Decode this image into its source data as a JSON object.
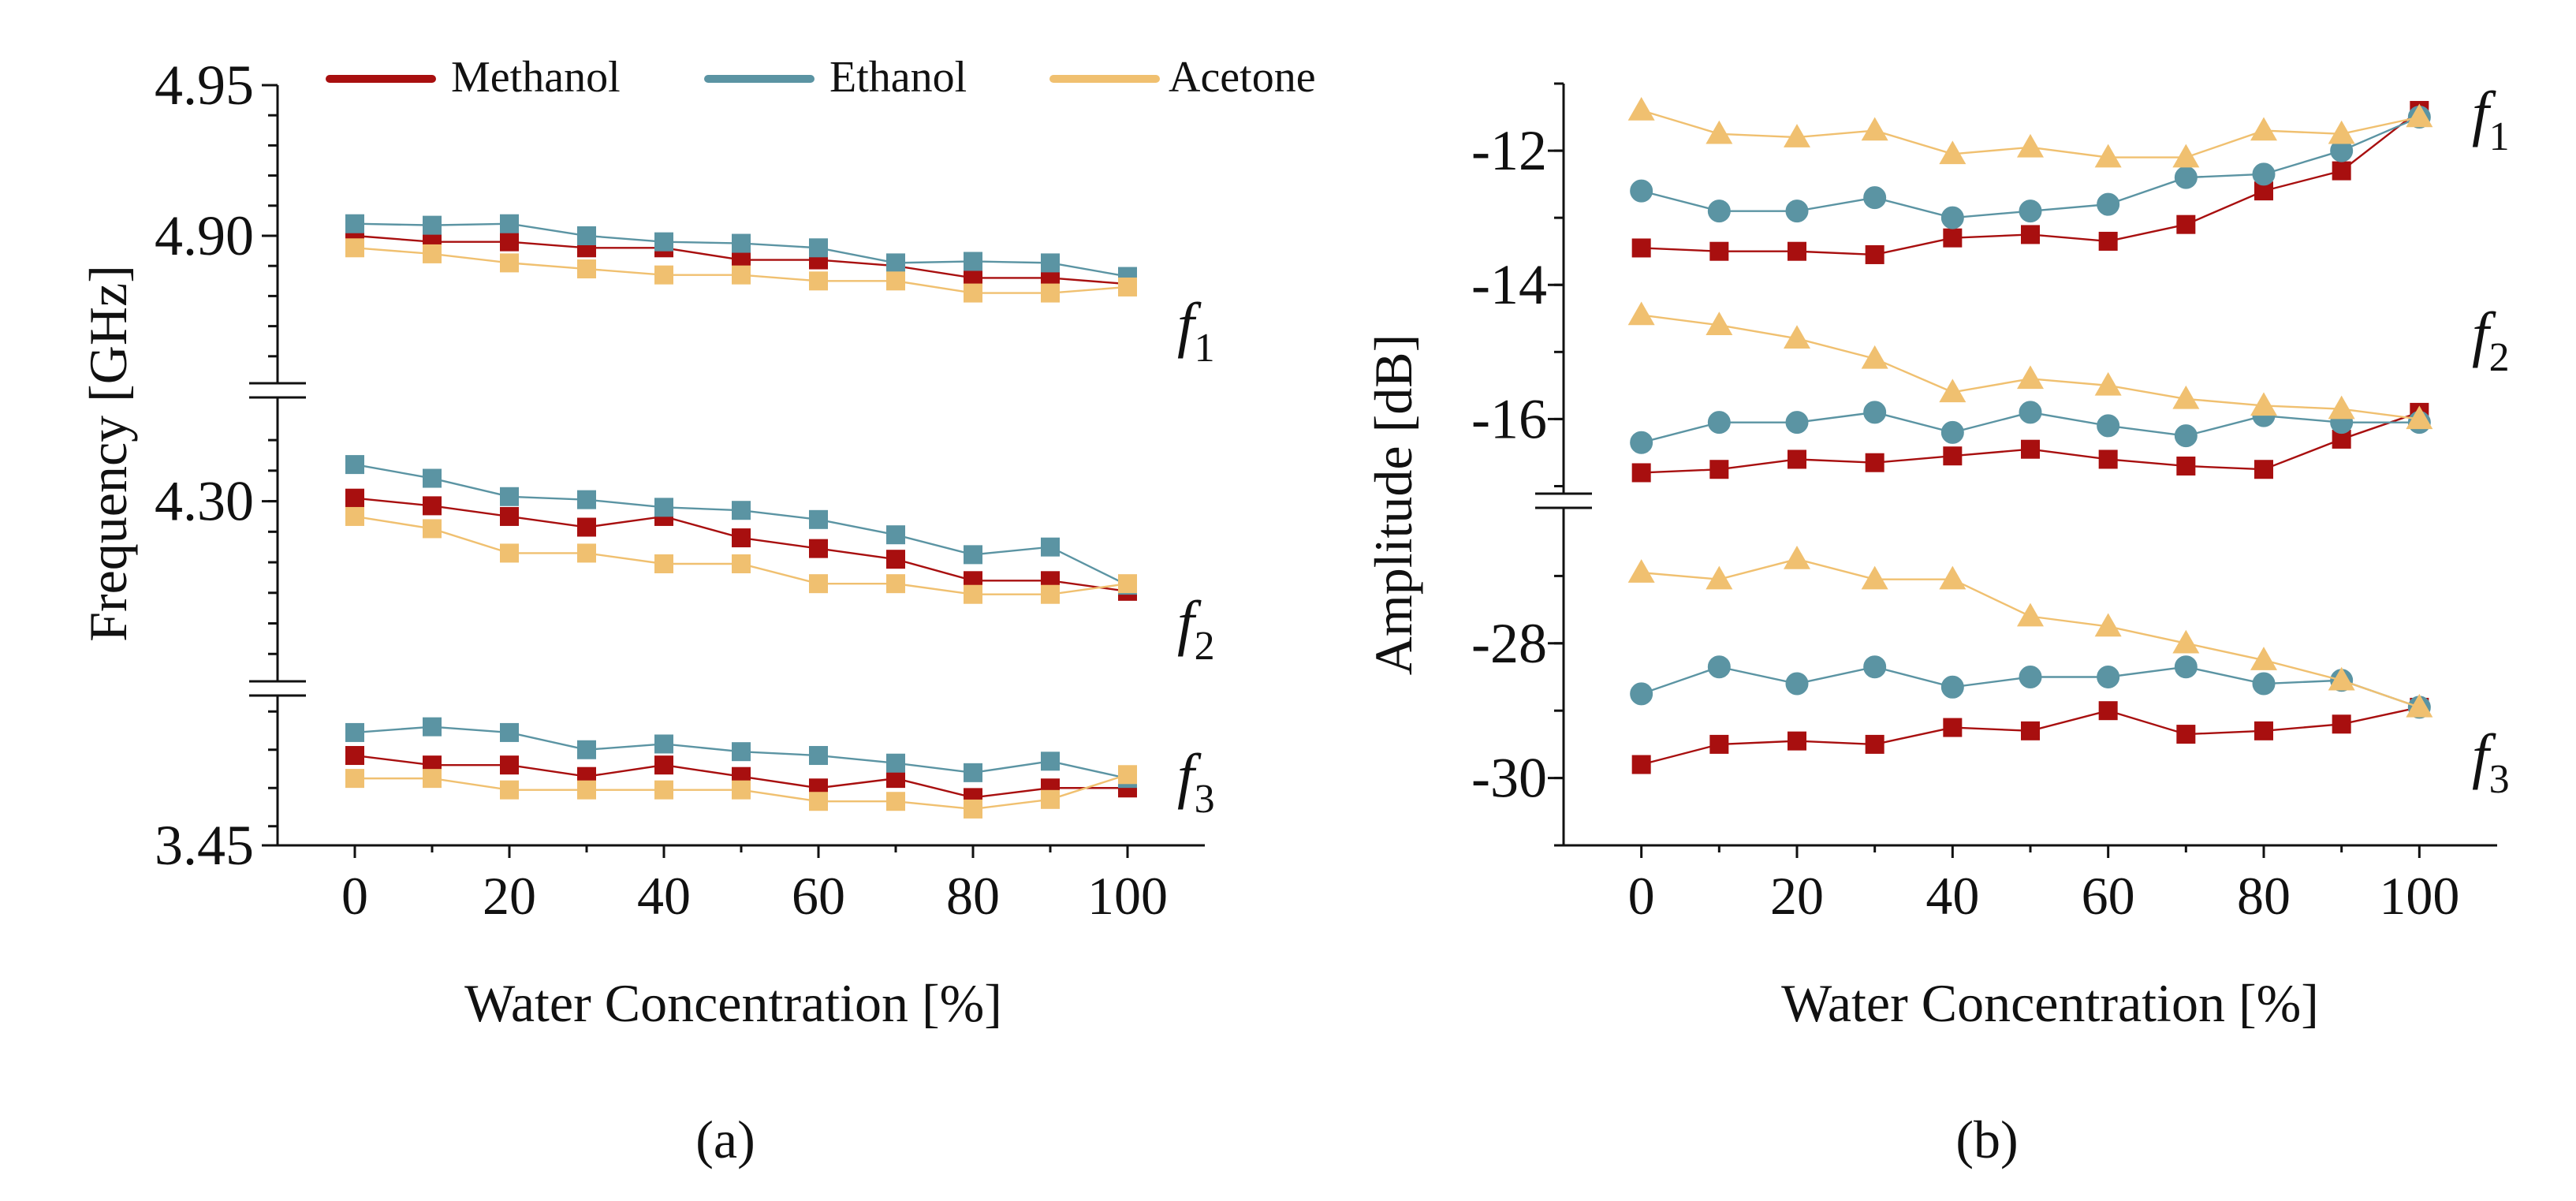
{
  "legend": [
    {
      "name": "Methanol",
      "color": "#a80f0f"
    },
    {
      "name": "Ethanol",
      "color": "#5b94a3"
    },
    {
      "name": "Acetone",
      "color": "#f0c070"
    }
  ],
  "chart_data": [
    {
      "type": "line",
      "panel_label": "(a)",
      "xlabel": "Water Concentration [%]",
      "ylabel": "Frequency [GHz]",
      "x": [
        0,
        10,
        20,
        30,
        40,
        50,
        60,
        70,
        80,
        90,
        100
      ],
      "xticks": [
        "0",
        "20",
        "40",
        "60",
        "80",
        "100"
      ],
      "xlim": [
        -10,
        110
      ],
      "marker": "square",
      "segments": [
        {
          "name": "f",
          "sub": "1",
          "ylim": [
            4.85,
            4.95
          ],
          "yticks": [
            "4.95",
            "4.90"
          ],
          "series": [
            {
              "name": "Methanol",
              "values": [
                4.9,
                4.898,
                4.898,
                4.896,
                4.896,
                4.892,
                4.892,
                4.89,
                4.886,
                4.886,
                4.884
              ]
            },
            {
              "name": "Ethanol",
              "values": [
                4.904,
                4.9035,
                4.904,
                4.9,
                4.898,
                4.8975,
                4.896,
                4.891,
                4.8915,
                4.891,
                4.8865
              ]
            },
            {
              "name": "Acetone",
              "values": [
                4.896,
                4.894,
                4.891,
                4.889,
                4.887,
                4.887,
                4.885,
                4.885,
                4.881,
                4.881,
                4.883
              ]
            }
          ]
        },
        {
          "name": "f",
          "sub": "2",
          "ylim": [
            4.18,
            4.37
          ],
          "yticks": [
            "4.30"
          ],
          "series": [
            {
              "name": "Methanol",
              "values": [
                4.302,
                4.297,
                4.29,
                4.283,
                4.29,
                4.276,
                4.269,
                4.262,
                4.248,
                4.248,
                4.241
              ]
            },
            {
              "name": "Ethanol",
              "values": [
                4.324,
                4.315,
                4.303,
                4.301,
                4.296,
                4.294,
                4.288,
                4.278,
                4.265,
                4.27,
                4.245
              ]
            },
            {
              "name": "Acetone",
              "values": [
                4.29,
                4.282,
                4.266,
                4.266,
                4.259,
                4.259,
                4.246,
                4.246,
                4.239,
                4.239,
                4.246
              ]
            }
          ]
        },
        {
          "name": "f",
          "sub": "3",
          "ylim": [
            3.45,
            3.53
          ],
          "yticks": [
            "3.45"
          ],
          "series": [
            {
              "name": "Methanol",
              "values": [
                3.497,
                3.492,
                3.492,
                3.486,
                3.492,
                3.486,
                3.48,
                3.485,
                3.475,
                3.48,
                3.48
              ]
            },
            {
              "name": "Ethanol",
              "values": [
                3.509,
                3.512,
                3.509,
                3.5,
                3.503,
                3.499,
                3.497,
                3.493,
                3.488,
                3.494,
                3.485
              ]
            },
            {
              "name": "Acetone",
              "values": [
                3.485,
                3.485,
                3.479,
                3.479,
                3.479,
                3.479,
                3.473,
                3.473,
                3.469,
                3.474,
                3.487
              ]
            }
          ]
        }
      ]
    },
    {
      "type": "line",
      "panel_label": "(b)",
      "xlabel": "Water Concentration [%]",
      "ylabel": "Amplitude [dB]",
      "x": [
        0,
        10,
        20,
        30,
        40,
        50,
        60,
        70,
        80,
        90,
        100
      ],
      "xticks": [
        "0",
        "20",
        "40",
        "60",
        "80",
        "100"
      ],
      "xlim": [
        -10,
        110
      ],
      "segments": [
        {
          "name": "f",
          "sub": "1",
          "ylim": [
            -17.1,
            -11
          ],
          "yticks": [
            "-12",
            "-14",
            "-16"
          ],
          "series": [
            {
              "name": "Methanol",
              "marker": "square",
              "values": [
                -13.45,
                -13.5,
                -13.5,
                -13.55,
                -13.3,
                -13.25,
                -13.35,
                -13.1,
                -12.6,
                -12.3,
                -11.4
              ]
            },
            {
              "name": "Ethanol",
              "marker": "circle",
              "values": [
                -12.6,
                -12.9,
                -12.9,
                -12.7,
                -13.0,
                -12.9,
                -12.8,
                -12.4,
                -12.35,
                -12.0,
                -11.5
              ]
            },
            {
              "name": "Acetone",
              "marker": "triangle",
              "values": [
                -11.4,
                -11.75,
                -11.8,
                -11.7,
                -12.05,
                -11.95,
                -12.1,
                -12.1,
                -11.7,
                -11.75,
                -11.5
              ]
            }
          ],
          "series_f2": [
            {
              "name": "Methanol",
              "marker": "square",
              "values": [
                -16.8,
                -16.75,
                -16.6,
                -16.65,
                -16.55,
                -16.45,
                -16.6,
                -16.7,
                -16.75,
                -16.3,
                -15.9
              ]
            },
            {
              "name": "Ethanol",
              "marker": "circle",
              "values": [
                -16.35,
                -16.05,
                -16.05,
                -15.9,
                -16.2,
                -15.9,
                -16.1,
                -16.25,
                -15.95,
                -16.05,
                -16.05
              ]
            },
            {
              "name": "Acetone",
              "marker": "triangle",
              "values": [
                -14.45,
                -14.6,
                -14.8,
                -15.1,
                -15.6,
                -15.4,
                -15.5,
                -15.7,
                -15.8,
                -15.85,
                -16.0
              ]
            }
          ]
        },
        {
          "name": "f",
          "sub": "3",
          "ylim": [
            -31,
            -26
          ],
          "yticks": [
            "-28",
            "-30"
          ],
          "series": [
            {
              "name": "Methanol",
              "marker": "square",
              "values": [
                -29.8,
                -29.5,
                -29.45,
                -29.5,
                -29.25,
                -29.3,
                -29.0,
                -29.35,
                -29.3,
                -29.2,
                -28.95
              ]
            },
            {
              "name": "Ethanol",
              "marker": "circle",
              "values": [
                -28.75,
                -28.35,
                -28.6,
                -28.35,
                -28.65,
                -28.5,
                -28.5,
                -28.35,
                -28.6,
                -28.55,
                -28.95
              ]
            },
            {
              "name": "Acetone",
              "marker": "triangle",
              "values": [
                -26.95,
                -27.05,
                -26.75,
                -27.05,
                -27.05,
                -27.6,
                -27.75,
                -28.0,
                -28.25,
                -28.55,
                -28.95
              ]
            }
          ]
        }
      ]
    }
  ]
}
